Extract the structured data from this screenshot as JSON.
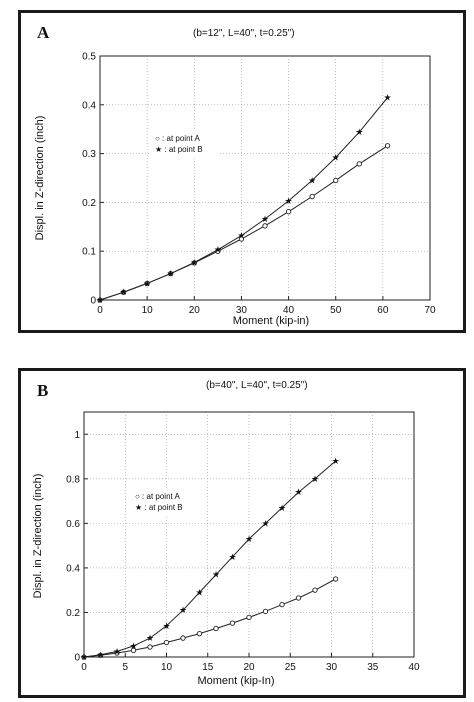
{
  "panels": [
    {
      "letter": "A",
      "title": "(b=12\", L=40\", t=0.25\")"
    },
    {
      "letter": "B",
      "title": "(b=40\", L=40\", t=0.25\")"
    }
  ],
  "chart_data": [
    {
      "type": "line",
      "title": "(b=12\", L=40\", t=0.25\")",
      "xlabel": "Moment (kip-in)",
      "ylabel": "Displ. in Z-direction (inch)",
      "xlim": [
        0,
        70
      ],
      "ylim": [
        0,
        0.5
      ],
      "xticks": [
        "0",
        "10",
        "20",
        "30",
        "40",
        "50",
        "60",
        "70"
      ],
      "yticks": [
        "0",
        "0.1",
        "0.2",
        "0.3",
        "0.4",
        "0.5"
      ],
      "grid": "dotted",
      "legend": "upper-left",
      "series": [
        {
          "name": "○ : at point A",
          "marker": "circle",
          "x": [
            0,
            5,
            10,
            15,
            20,
            25,
            30,
            35,
            40,
            45,
            50,
            55,
            61
          ],
          "y": [
            0,
            0.016,
            0.034,
            0.054,
            0.076,
            0.1,
            0.125,
            0.152,
            0.181,
            0.212,
            0.245,
            0.279,
            0.316
          ]
        },
        {
          "name": "★ : at point B",
          "marker": "star",
          "x": [
            0,
            5,
            10,
            15,
            20,
            25,
            30,
            35,
            40,
            45,
            50,
            55,
            61
          ],
          "y": [
            0,
            0.016,
            0.034,
            0.054,
            0.077,
            0.103,
            0.132,
            0.166,
            0.203,
            0.245,
            0.292,
            0.344,
            0.415
          ]
        }
      ]
    },
    {
      "type": "line",
      "title": "(b=40\", L=40\", t=0.25\")",
      "xlabel": "Moment (kip-In)",
      "ylabel": "Displ. in Z-direction (inch)",
      "xlim": [
        0,
        40
      ],
      "ylim": [
        0,
        1.1
      ],
      "xticks": [
        "0",
        "5",
        "10",
        "15",
        "20",
        "25",
        "30",
        "35",
        "40"
      ],
      "yticks": [
        "0",
        "0.2",
        "0.4",
        "0.6",
        "0.8",
        "1"
      ],
      "grid": "dotted",
      "legend": "upper-left",
      "series": [
        {
          "name": "○ : at point A",
          "marker": "circle",
          "x": [
            0,
            2,
            4,
            6,
            8,
            10,
            12,
            14,
            16,
            18,
            20,
            22,
            24,
            26,
            28,
            30.5
          ],
          "y": [
            0,
            0.008,
            0.018,
            0.03,
            0.045,
            0.065,
            0.085,
            0.105,
            0.128,
            0.152,
            0.178,
            0.205,
            0.235,
            0.265,
            0.3,
            0.35
          ]
        },
        {
          "name": "★ : at point B",
          "marker": "star",
          "x": [
            0,
            2,
            4,
            6,
            8,
            10,
            12,
            14,
            16,
            18,
            20,
            22,
            24,
            26,
            28,
            30.5
          ],
          "y": [
            0,
            0.01,
            0.025,
            0.05,
            0.085,
            0.14,
            0.21,
            0.29,
            0.37,
            0.45,
            0.53,
            0.6,
            0.67,
            0.74,
            0.8,
            0.88
          ]
        }
      ]
    }
  ]
}
